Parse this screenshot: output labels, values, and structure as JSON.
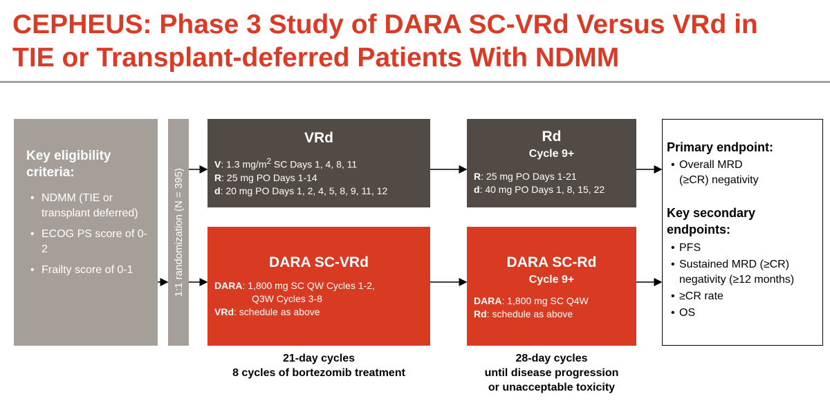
{
  "header": {
    "title_lines": [
      "CEPHEUS: Phase 3 Study of DARA SC-VRd Versus VRd in",
      "TIE or Transplant-deferred Patients With NDMM"
    ]
  },
  "eligibility": {
    "heading": "Key eligibility criteria:",
    "items": [
      "NDMM (TIE or transplant deferred)",
      "ECOG PS score of 0-2",
      "Frailty score of 0-1"
    ]
  },
  "randomization": "1:1 randomization (N = 395)",
  "induction": {
    "control": {
      "title": "VRd",
      "lines": [
        {
          "label": "V",
          "text": ": 1.3 mg/m",
          "sup": "2",
          "text_after": " SC Days 1, 4, 8, 11"
        },
        {
          "label": "R",
          "text": ": 25 mg PO Days 1-14"
        },
        {
          "label": "d",
          "text": ": 20 mg PO Days 1, 2, 4, 5, 8, 9, 11, 12"
        }
      ]
    },
    "experimental": {
      "title": "DARA SC-VRd",
      "lines": [
        {
          "label": "DARA",
          "text": ": 1,800 mg SC QW Cycles 1-2,"
        },
        {
          "text": "Q3W Cycles 3-8"
        },
        {
          "label": "VRd",
          "text": ": schedule as above"
        }
      ]
    },
    "footer": [
      "21-day cycles",
      "8 cycles of bortezomib treatment"
    ]
  },
  "maintenance": {
    "control": {
      "title": "Rd",
      "subtitle": "Cycle 9+",
      "lines": [
        {
          "label": "R",
          "text": ": 25 mg PO Days 1-21"
        },
        {
          "label": "d",
          "text": ": 40 mg PO Days 1, 8, 15, 22"
        }
      ]
    },
    "experimental": {
      "title": "DARA SC-Rd",
      "subtitle": "Cycle 9+",
      "lines": [
        {
          "label": "DARA",
          "text": ": 1,800 mg SC Q4W"
        },
        {
          "label": "Rd",
          "text": ": schedule as above"
        }
      ]
    },
    "footer": [
      "28-day cycles",
      "until disease progression",
      "or unacceptable toxicity"
    ]
  },
  "endpoints": {
    "primary": {
      "heading": "Primary endpoint:",
      "items": [
        "Overall MRD (≥CR) negativity"
      ]
    },
    "secondary": {
      "heading": "Key secondary endpoints:",
      "items": [
        "PFS",
        "Sustained MRD (≥CR) negativity (≥12 months)",
        "≥CR rate",
        "OS"
      ]
    }
  }
}
